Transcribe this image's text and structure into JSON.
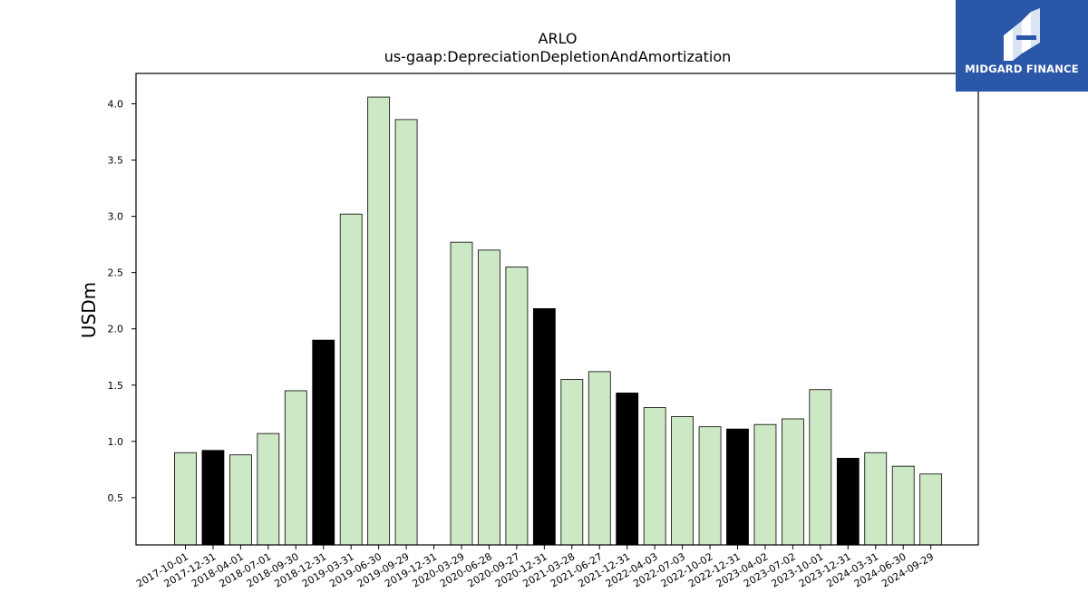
{
  "brand": {
    "name": "MIDGARD FINANCE",
    "bg_color": "#2b57a9"
  },
  "chart_data": {
    "type": "bar",
    "title": "ARLO",
    "subtitle": "us-gaap:DepreciationDepletionAndAmortization",
    "ylabel": "USDm",
    "xlabel": "",
    "ylim": [
      0.08,
      4.27
    ],
    "yticks": [
      0.5,
      1.0,
      1.5,
      2.0,
      2.5,
      3.0,
      3.5,
      4.0
    ],
    "grid": false,
    "categories": [
      "2017-10-01",
      "2017-12-31",
      "2018-04-01",
      "2018-07-01",
      "2018-09-30",
      "2018-12-31",
      "2019-03-31",
      "2019-06-30",
      "2019-09-29",
      "2019-12-31",
      "2020-03-29",
      "2020-06-28",
      "2020-09-27",
      "2020-12-31",
      "2021-03-28",
      "2021-06-27",
      "2021-12-31",
      "2022-04-03",
      "2022-07-03",
      "2022-10-02",
      "2022-12-31",
      "2023-04-02",
      "2023-07-02",
      "2023-10-01",
      "2023-12-31",
      "2024-03-31",
      "2024-06-30",
      "2024-09-29"
    ],
    "values": [
      0.9,
      0.92,
      0.88,
      1.07,
      1.45,
      1.9,
      3.02,
      4.06,
      3.86,
      null,
      2.77,
      2.7,
      2.55,
      2.18,
      1.55,
      1.62,
      1.43,
      1.3,
      1.22,
      1.13,
      1.11,
      1.15,
      1.2,
      1.46,
      0.85,
      0.9,
      0.78,
      0.71
    ],
    "year_end": [
      false,
      true,
      false,
      false,
      false,
      true,
      false,
      false,
      false,
      true,
      false,
      false,
      false,
      true,
      false,
      false,
      true,
      false,
      false,
      false,
      true,
      false,
      false,
      false,
      true,
      false,
      false,
      false
    ],
    "colors": {
      "quarter_fill": "#cde8c5",
      "year_end_fill": "#000000",
      "edge": "#000000"
    }
  }
}
